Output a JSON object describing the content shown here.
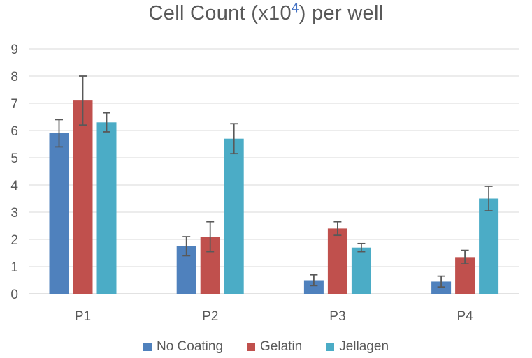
{
  "title": {
    "prefix": "Cell Count (x10",
    "superscript": "4",
    "suffix": ") per well"
  },
  "chart_data": {
    "type": "bar",
    "title": "Cell Count (x10⁴) per well",
    "categories": [
      "P1",
      "P2",
      "P3",
      "P4"
    ],
    "series": [
      {
        "name": "No Coating",
        "color": "#4F81BD",
        "values": [
          5.9,
          1.75,
          0.5,
          0.45
        ],
        "errors": [
          0.5,
          0.35,
          0.2,
          0.2
        ]
      },
      {
        "name": "Gelatin",
        "color": "#C0504D",
        "values": [
          7.1,
          2.1,
          2.4,
          1.35
        ],
        "errors": [
          0.9,
          0.55,
          0.25,
          0.25
        ]
      },
      {
        "name": "Jellagen",
        "color": "#4BACC6",
        "values": [
          6.3,
          5.7,
          1.7,
          3.5
        ],
        "errors": [
          0.35,
          0.55,
          0.15,
          0.45
        ]
      }
    ],
    "xlabel": "",
    "ylabel": "",
    "ylim": [
      0,
      9
    ],
    "yticks": [
      0,
      1,
      2,
      3,
      4,
      5,
      6,
      7,
      8,
      9
    ],
    "grid": true,
    "error_bars": true,
    "legend_position": "bottom"
  },
  "colors": {
    "text": "#595959",
    "gridline": "#D9D9D9",
    "axis_line": "#D9D9D9",
    "error_bar": "#595959",
    "title_superscript": "#4472C4",
    "background": "#FFFFFF"
  }
}
